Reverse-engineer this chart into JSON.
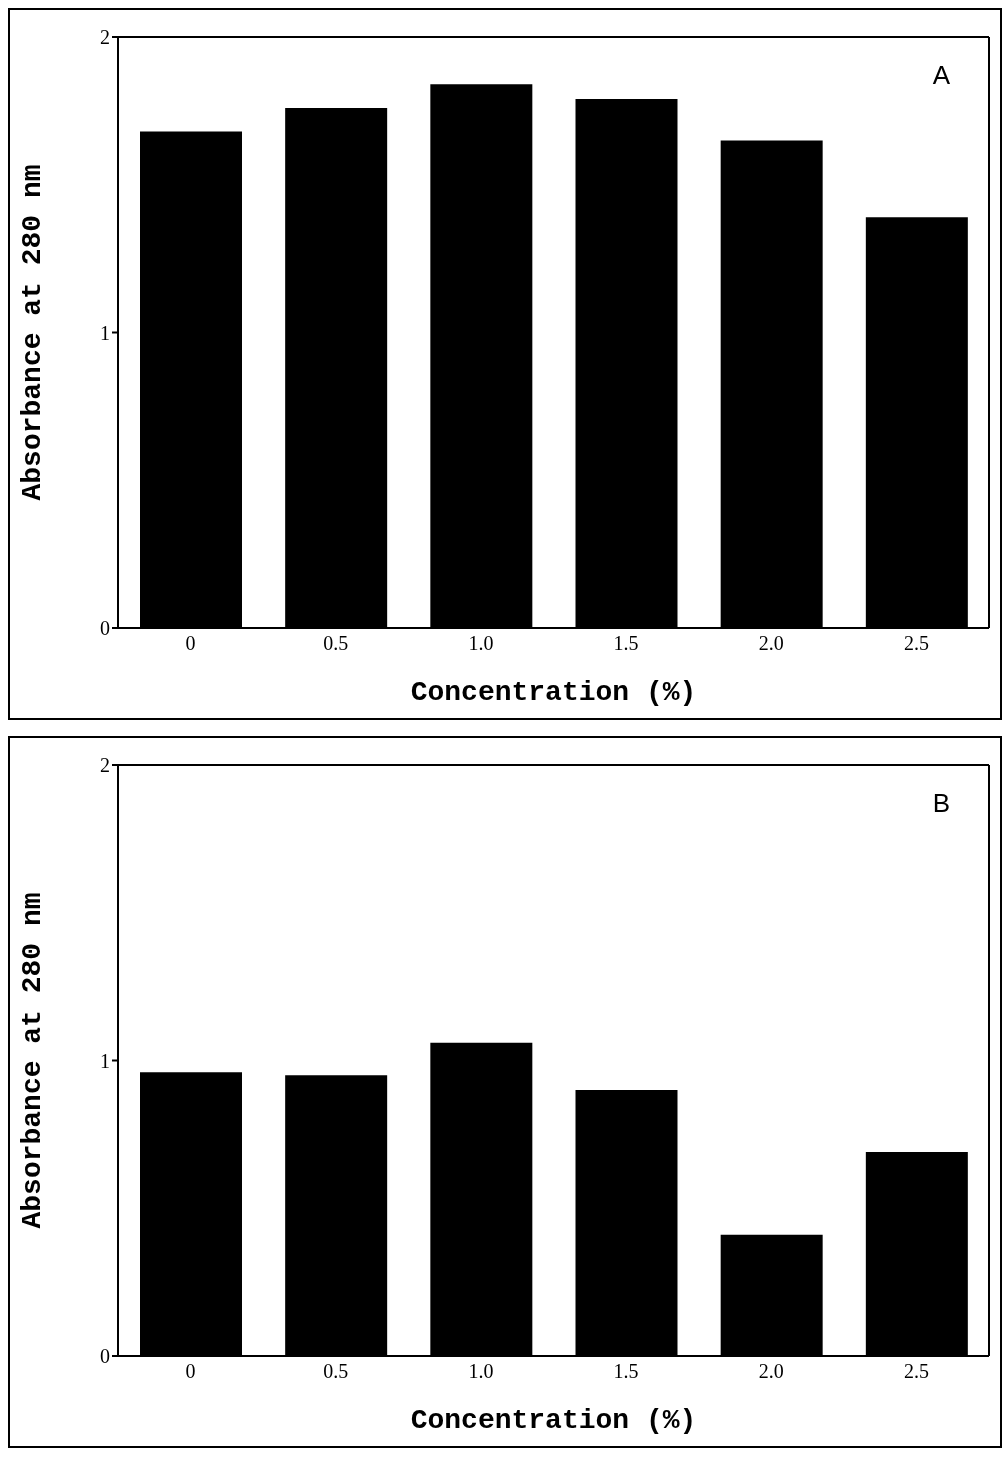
{
  "chart_data": [
    {
      "type": "bar",
      "categories": [
        "0",
        "0.5",
        "1.0",
        "1.5",
        "2.0",
        "2.5"
      ],
      "values": [
        1.68,
        1.76,
        1.84,
        1.79,
        1.65,
        1.39
      ],
      "color": "#000000",
      "xlabel": "Concentration (%)",
      "ylabel": "Absorbance at 280 nm",
      "ylim": [
        0,
        2
      ],
      "yticks": [
        0,
        1,
        2
      ],
      "grid": false,
      "legend": false,
      "annotations": [
        "A"
      ]
    },
    {
      "type": "bar",
      "categories": [
        "0",
        "0.5",
        "1.0",
        "1.5",
        "2.0",
        "2.5"
      ],
      "values": [
        0.96,
        0.95,
        1.06,
        0.9,
        0.41,
        0.69
      ],
      "color": "#000000",
      "xlabel": "Concentration (%)",
      "ylabel": "Absorbance at 280 nm",
      "ylim": [
        0,
        2
      ],
      "yticks": [
        0,
        1,
        2
      ],
      "grid": false,
      "legend": false,
      "annotations": [
        "B"
      ]
    }
  ]
}
